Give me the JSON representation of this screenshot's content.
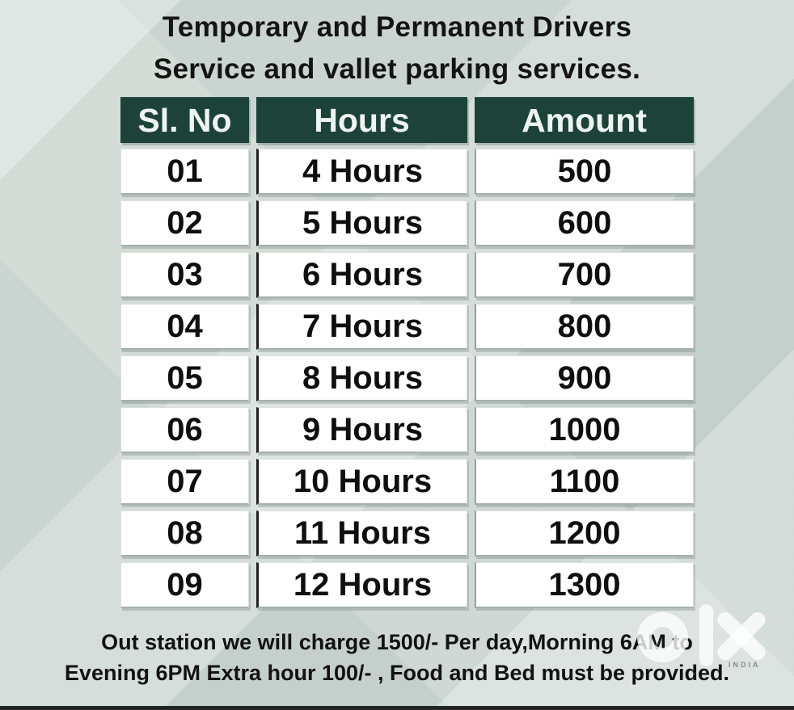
{
  "page": {
    "title_line1": "Temporary and Permanent Drivers",
    "title_line2": "Service and vallet parking services."
  },
  "table": {
    "headers": {
      "sl_no": "Sl. No",
      "hours": "Hours",
      "amount": "Amount"
    },
    "rows": [
      {
        "sl_no": "01",
        "hours": "4 Hours",
        "amount": "500"
      },
      {
        "sl_no": "02",
        "hours": "5 Hours",
        "amount": "600"
      },
      {
        "sl_no": "03",
        "hours": "6 Hours",
        "amount": "700"
      },
      {
        "sl_no": "04",
        "hours": "7 Hours",
        "amount": "800"
      },
      {
        "sl_no": "05",
        "hours": "8 Hours",
        "amount": "900"
      },
      {
        "sl_no": "06",
        "hours": "9 Hours",
        "amount": "1000"
      },
      {
        "sl_no": "07",
        "hours": "10 Hours",
        "amount": "1100"
      },
      {
        "sl_no": "08",
        "hours": "11 Hours",
        "amount": "1200"
      },
      {
        "sl_no": "09",
        "hours": "12 Hours",
        "amount": "1300"
      }
    ]
  },
  "footer": {
    "line1": "Out station we will charge 1500/- Per day,Morning 6AM to",
    "line2": "Evening 6PM Extra hour 100/- , Food and Bed must be provided."
  },
  "watermark": {
    "brand": "olx",
    "country_label": "INDIA"
  },
  "colors": {
    "header_bg": "#1d423a",
    "header_text": "#eef4f1",
    "cell_bg": "#ffffff",
    "cell_text": "#0f0f0f",
    "page_bg": "#ced8d4",
    "bottom_bar": "#242424"
  }
}
